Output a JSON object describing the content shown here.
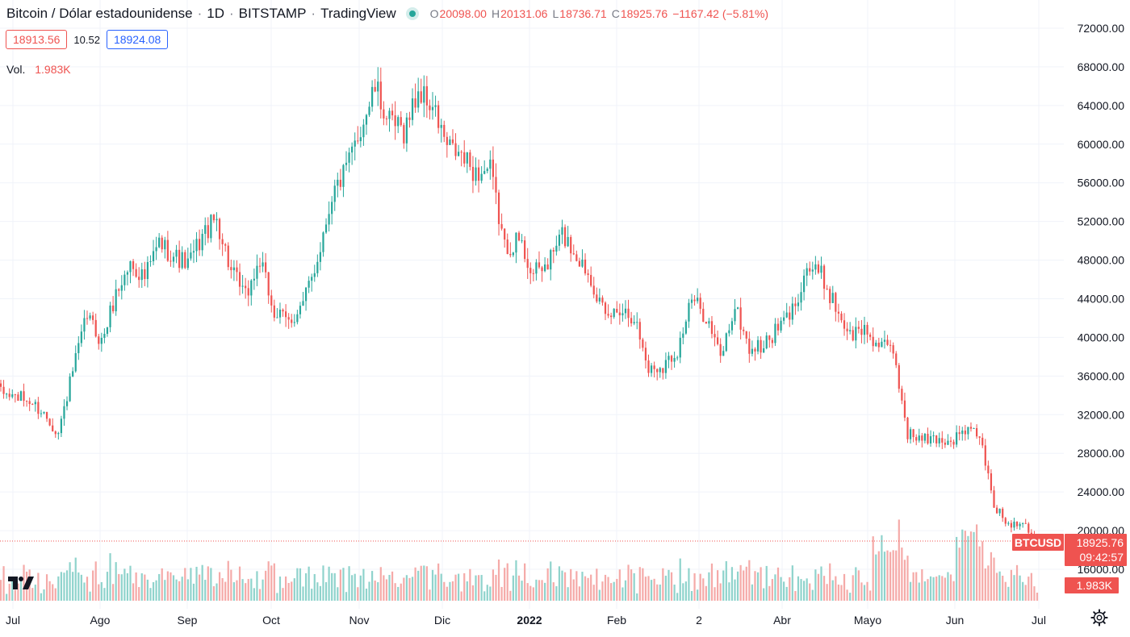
{
  "header": {
    "title": "Bitcoin / Dólar estadounidense",
    "interval": "1D",
    "exchange": "BITSTAMP",
    "provider": "TradingView",
    "ohlc": {
      "o_label": "O",
      "o_value": "20098.00",
      "h_label": "H",
      "h_value": "20131.06",
      "l_label": "L",
      "l_value": "18736.71",
      "c_label": "C",
      "c_value": "18925.76",
      "change": "−1167.42 (−5.81%)"
    },
    "sell_price": "18913.56",
    "spread": "10.52",
    "buy_price": "18924.08",
    "volume_label": "Vol.",
    "volume_value": "1.983K"
  },
  "badges": {
    "symbol": "BTCUSD",
    "price": "18925.76",
    "countdown": "09:42:57",
    "volume": "1.983K"
  },
  "colors": {
    "up": "#26a69a",
    "down": "#ef5350",
    "up_volume": "#8fd3cc",
    "down_volume": "#f5aaa8",
    "grid": "#f0f3fa",
    "axis_text": "#131722"
  },
  "icons": {
    "logo": "tradingview-logo-icon",
    "settings": "gear-icon",
    "status": "market-status-dot-icon"
  },
  "chart_data": {
    "type": "candlestick",
    "symbol": "BTCUSD",
    "interval": "1D",
    "x_tick_labels": [
      "Jul",
      "Ago",
      "Sep",
      "Oct",
      "Nov",
      "Dic",
      "2022",
      "Feb",
      "2",
      "Abr",
      "Mayo",
      "Jun",
      "Jul"
    ],
    "y_tick_labels": [
      "72000.00",
      "68000.00",
      "64000.00",
      "60000.00",
      "56000.00",
      "52000.00",
      "48000.00",
      "44000.00",
      "40000.00",
      "36000.00",
      "32000.00",
      "28000.00",
      "24000.00",
      "20000.00",
      "16000.00"
    ],
    "ylim": [
      15000,
      72500
    ],
    "grid": true,
    "current_price": 18925.76,
    "series": [
      {
        "name": "price",
        "close_by_week": [
          34200,
          33900,
          33400,
          32100,
          30100,
          36500,
          42300,
          39500,
          44500,
          47600,
          46200,
          49800,
          48500,
          47500,
          50500,
          52300,
          46800,
          44200,
          47900,
          42500,
          41600,
          43400,
          48200,
          54800,
          57300,
          61700,
          65800,
          62100,
          61400,
          65500,
          63800,
          59700,
          58700,
          57000,
          57300,
          49300,
          50100,
          46500,
          47600,
          50700,
          48500,
          46300,
          41800,
          43100,
          42200,
          36700,
          37100,
          38700,
          43900,
          42200,
          37900,
          43200,
          38800,
          39100,
          40900,
          42800,
          47300,
          46400,
          43200,
          40200,
          40900,
          39100,
          38600,
          30100,
          29400,
          29500,
          29200,
          30400,
          29900,
          22600,
          20600,
          21100,
          18926
        ]
      },
      {
        "name": "volume",
        "unit": "K",
        "current": 1.983
      }
    ]
  }
}
